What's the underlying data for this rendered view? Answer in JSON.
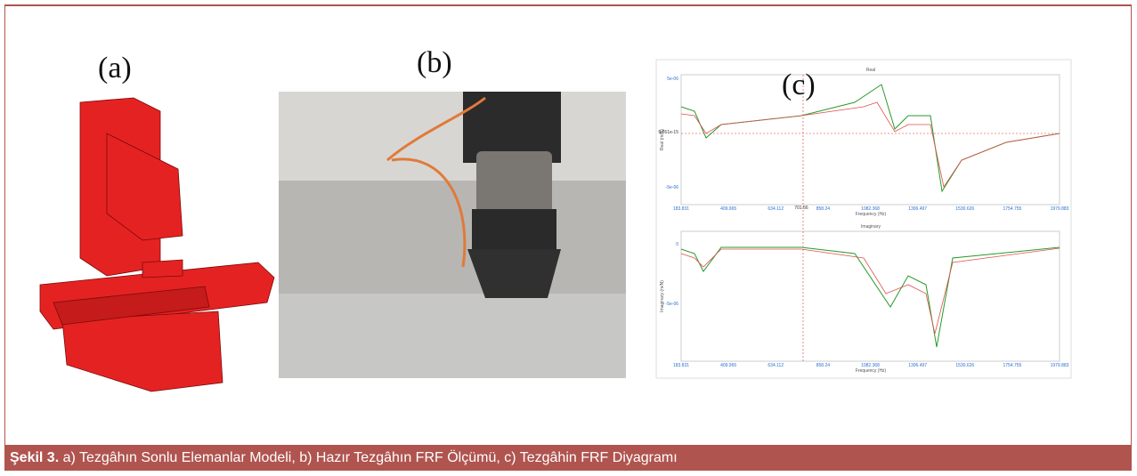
{
  "figure": {
    "panels": [
      {
        "label": "(a)"
      },
      {
        "label": "(b)"
      },
      {
        "label": "(c)"
      }
    ],
    "plot": {
      "top_title": "Real",
      "bottom_title": "Imaginary",
      "x_label": "Frequency (Hz)",
      "top_y_label": "Real (m/N)",
      "bottom_y_label": "Imaginary (m/N)",
      "cursor_label": "701.56",
      "top_yticks": [
        "5e-06",
        "-5e-06"
      ],
      "bottom_yticks": [
        "0",
        "-5e-06"
      ],
      "top_marker": "6.261e-15",
      "xticks": [
        "183.831",
        "409.965",
        "634.112",
        "858.24",
        "1082.368",
        "1306.497",
        "1530.626",
        "1754.755",
        "1979.883"
      ]
    },
    "caption": {
      "number": "Şekil 3.",
      "text": " a) Tezgâhın Sonlu Elemanlar Modeli, b) Hazır Tezgâhın FRF Ölçümü, c) Tezgâhin FRF Diyagramı"
    }
  }
}
